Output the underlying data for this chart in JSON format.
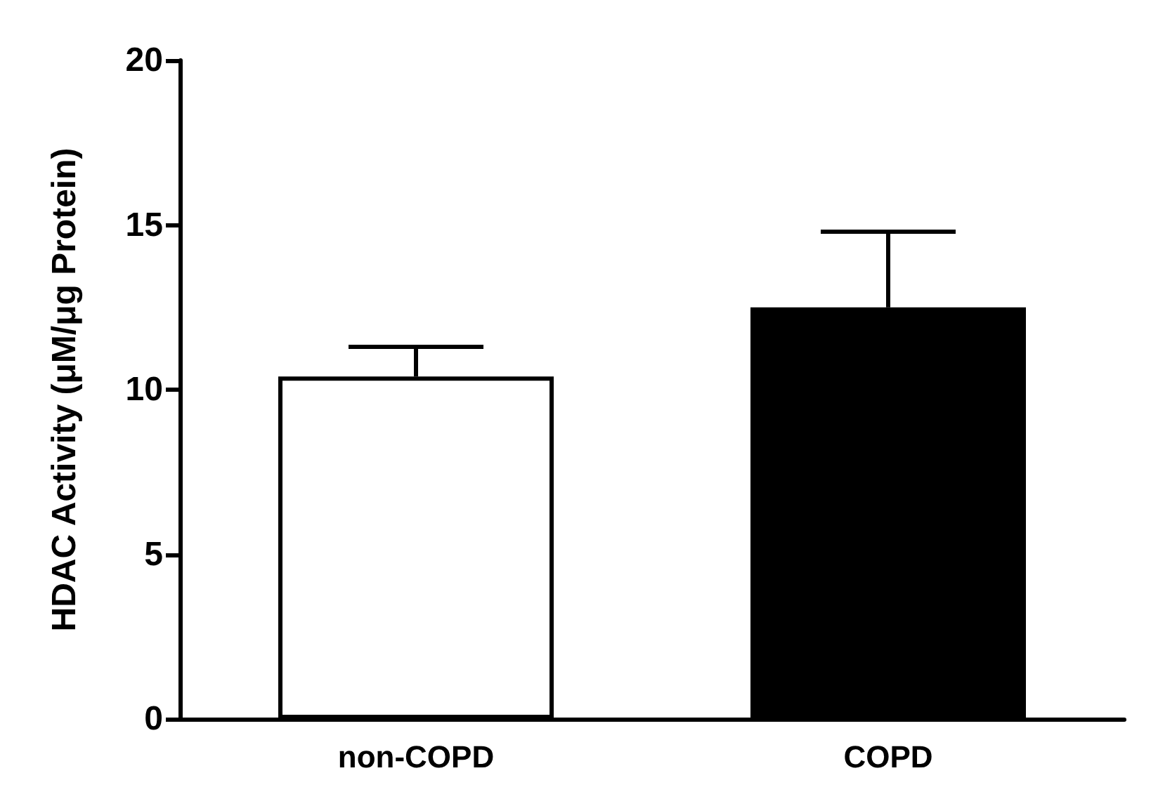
{
  "chart_data": {
    "type": "bar",
    "ylabel": "HDAC Activity (μM/μg Protein)",
    "categories": [
      "non-COPD",
      "COPD"
    ],
    "values": [
      10.4,
      12.5
    ],
    "colors": [
      "#ffffff",
      "#000000"
    ],
    "errors": [
      [
        10.4,
        11.3
      ],
      [
        12.5,
        14.8
      ]
    ],
    "ylim": [
      0,
      20
    ],
    "yticks": [
      0,
      5,
      10,
      15,
      20
    ],
    "grid": false
  }
}
